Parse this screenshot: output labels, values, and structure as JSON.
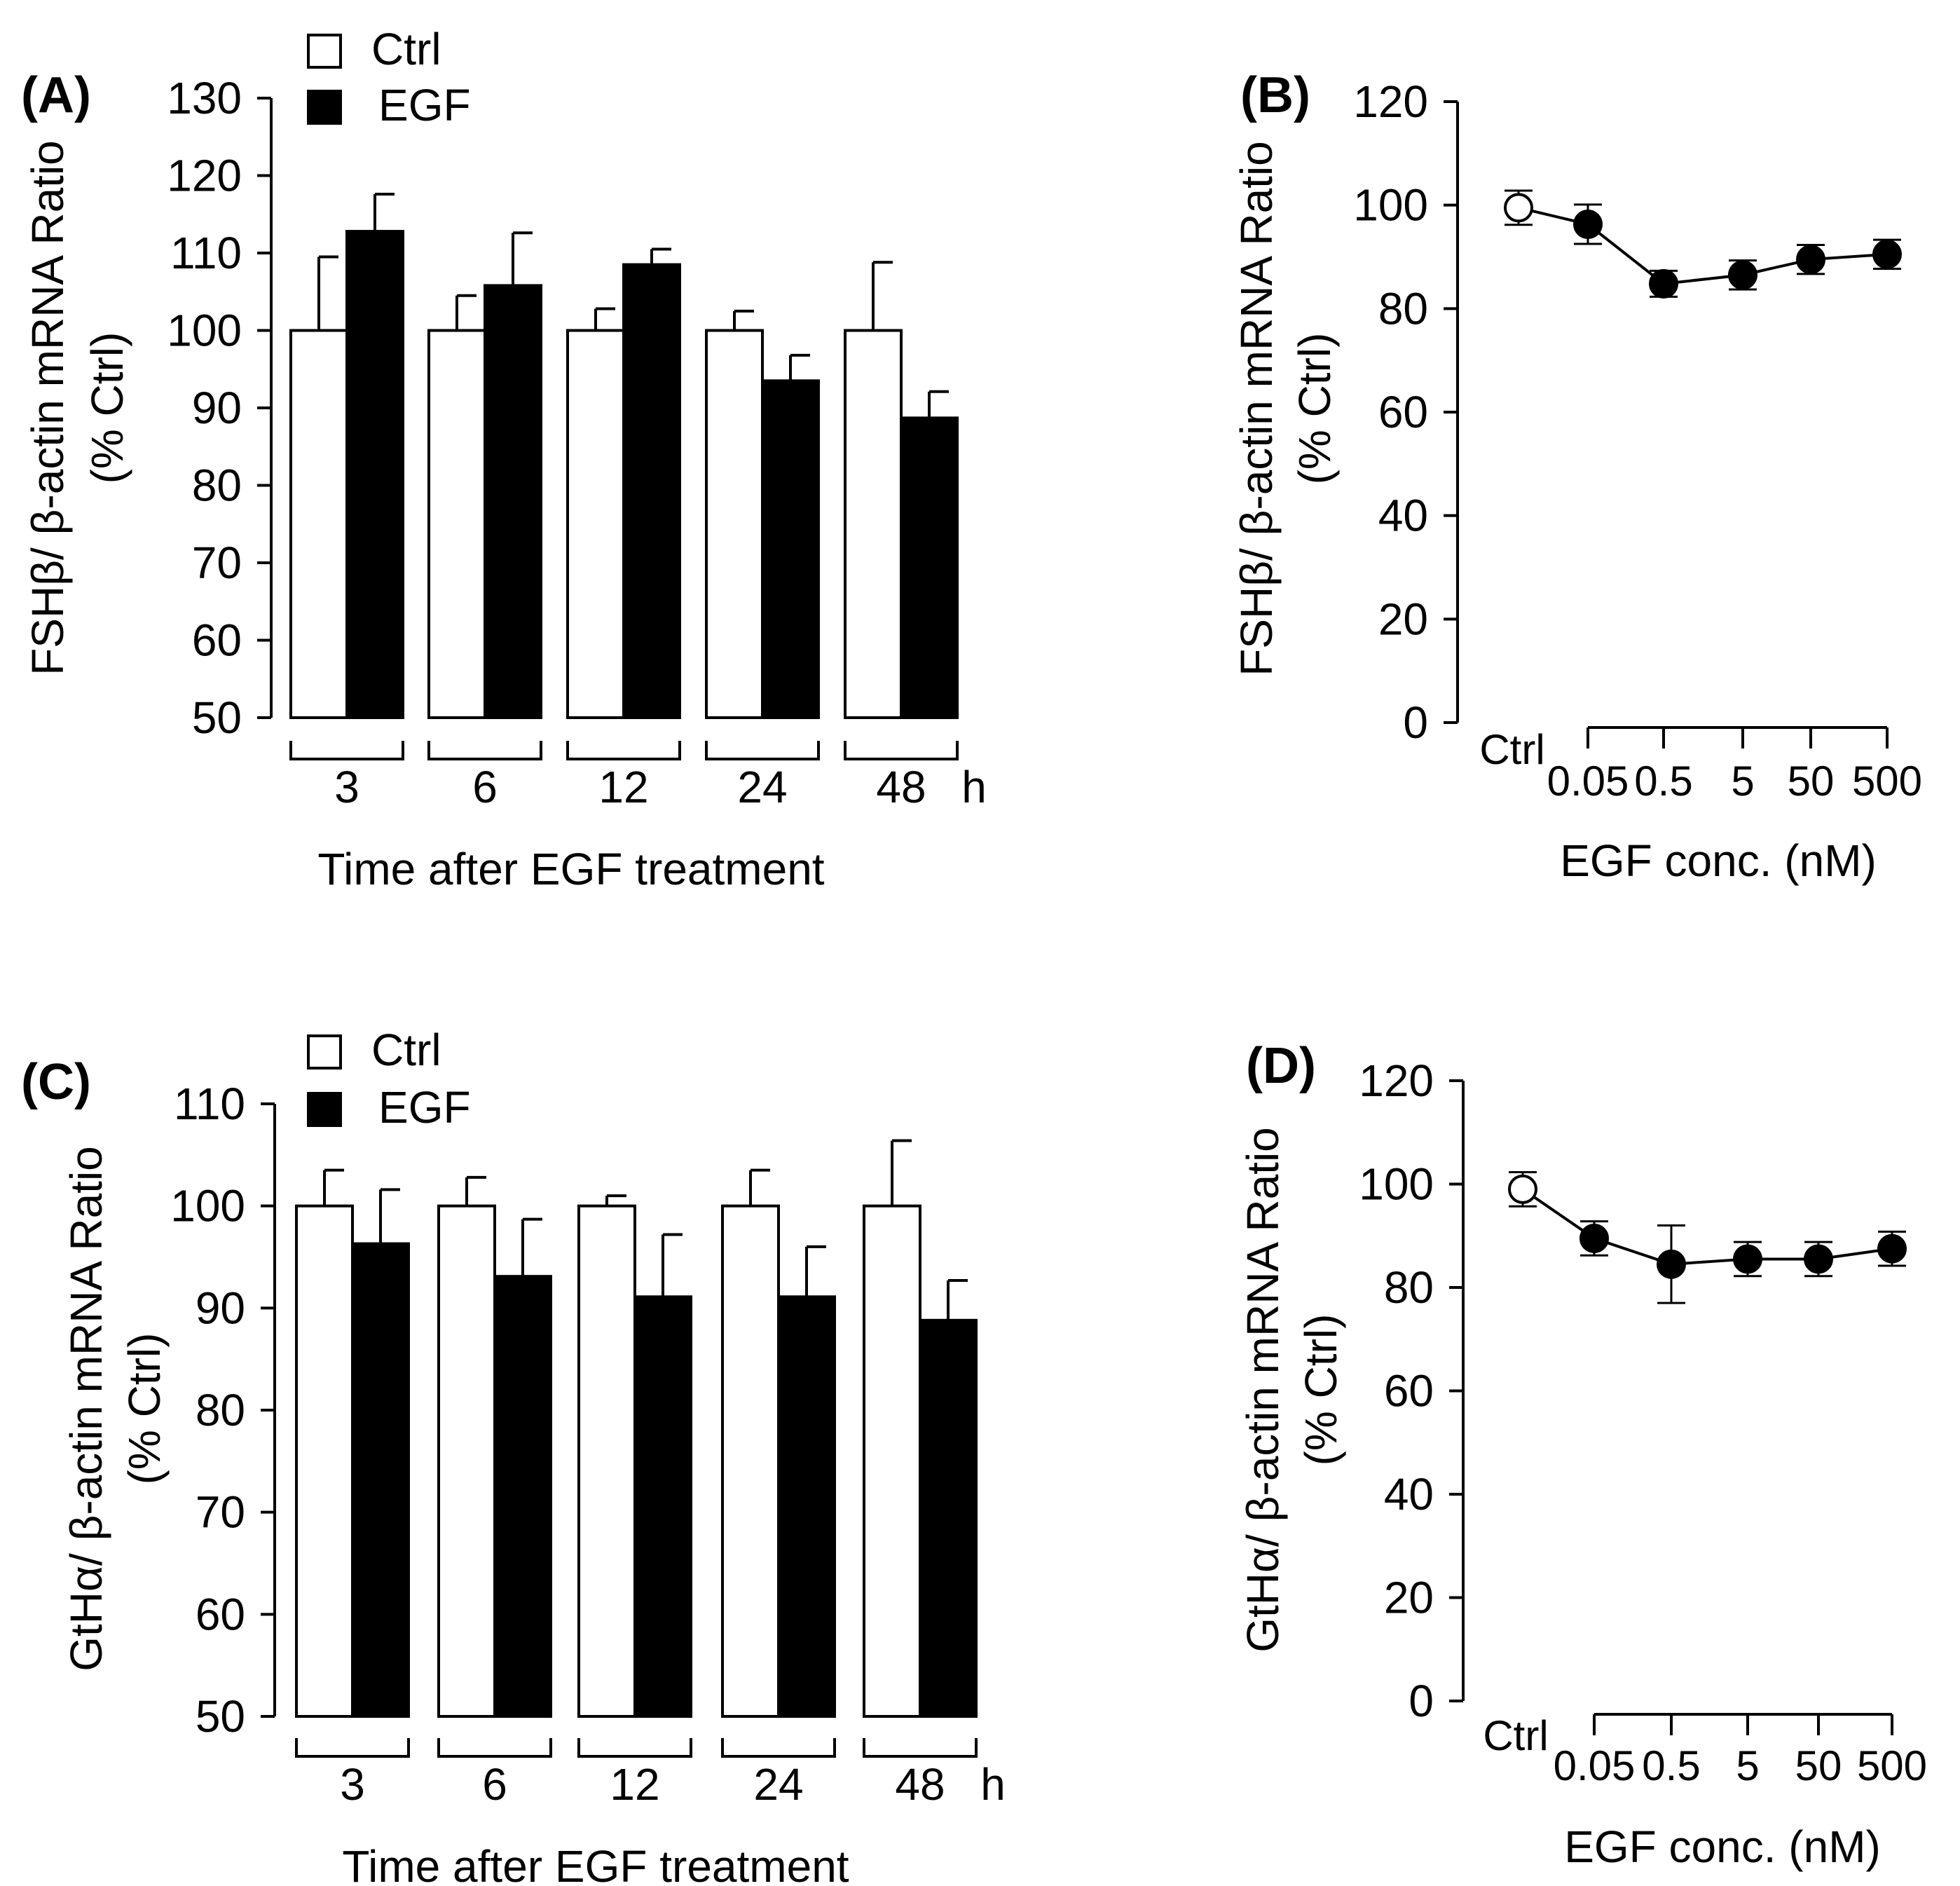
{
  "chart_data": [
    {
      "panel": "(A)",
      "type": "bar",
      "ylabel": "FSHβ/ β-actin mRNA Ratio",
      "ylabel2": "(% Ctrl)",
      "xlabel": "Time after EGF treatment",
      "unit": "h",
      "categories": [
        "3",
        "6",
        "12",
        "24",
        "48"
      ],
      "yticks": [
        "50",
        "60",
        "70",
        "80",
        "90",
        "100",
        "110",
        "120",
        "130"
      ],
      "ylim": [
        50,
        130
      ],
      "legend": [
        "Ctrl",
        "EGF"
      ],
      "series": [
        {
          "name": "Ctrl",
          "values": [
            100,
            100,
            100,
            100,
            100
          ],
          "errors": [
            9.5,
            4.5,
            2.8,
            2.5,
            8.8
          ]
        },
        {
          "name": "EGF",
          "values": [
            112.8,
            105.8,
            108.5,
            93.5,
            88.7
          ],
          "errors": [
            4.8,
            6.8,
            2.0,
            3.3,
            3.4
          ]
        }
      ]
    },
    {
      "panel": "(B)",
      "type": "line",
      "ylabel": "FSHβ/ β-actin mRNA Ratio",
      "ylabel2": "(% Ctrl)",
      "xlabel": "EGF conc. (nM)",
      "categories": [
        "Ctrl",
        "0.05",
        "0.5",
        "5",
        "50",
        "500"
      ],
      "yticks": [
        "0",
        "20",
        "40",
        "60",
        "80",
        "100",
        "120"
      ],
      "ylim": [
        0,
        120
      ],
      "values": [
        99.5,
        96.3,
        84.8,
        86.5,
        89.5,
        90.5
      ],
      "errors": [
        3.3,
        3.8,
        2.5,
        2.8,
        2.8,
        2.8
      ]
    },
    {
      "panel": "(C)",
      "type": "bar",
      "ylabel": "GtHα/ β-actin mRNA Ratio",
      "ylabel2": "(% Ctrl)",
      "xlabel": "Time after EGF treatment",
      "unit": "h",
      "categories": [
        "3",
        "6",
        "12",
        "24",
        "48"
      ],
      "yticks": [
        "50",
        "60",
        "70",
        "80",
        "90",
        "100",
        "110"
      ],
      "ylim": [
        50,
        110
      ],
      "legend": [
        "Ctrl",
        "EGF"
      ],
      "series": [
        {
          "name": "Ctrl",
          "values": [
            100,
            100,
            100,
            100,
            100
          ],
          "errors": [
            3.5,
            2.8,
            1.0,
            3.5,
            6.4
          ]
        },
        {
          "name": "EGF",
          "values": [
            96.3,
            93.1,
            91.1,
            91.1,
            88.8
          ],
          "errors": [
            5.3,
            5.6,
            6.1,
            4.9,
            3.9
          ]
        }
      ]
    },
    {
      "panel": "(D)",
      "type": "line",
      "ylabel": "GtHα/ β-actin mRNA Ratio",
      "ylabel2": "(% Ctrl)",
      "xlabel": "EGF conc. (nM)",
      "categories": [
        "Ctrl",
        "0.05",
        "0.5",
        "5",
        "50",
        "500"
      ],
      "yticks": [
        "0",
        "20",
        "40",
        "60",
        "80",
        "100",
        "120"
      ],
      "ylim": [
        0,
        120
      ],
      "values": [
        99,
        89.5,
        84.5,
        85.5,
        85.5,
        87.5
      ],
      "errors": [
        3.3,
        3.3,
        7.5,
        3.3,
        3.3,
        3.3
      ]
    }
  ]
}
